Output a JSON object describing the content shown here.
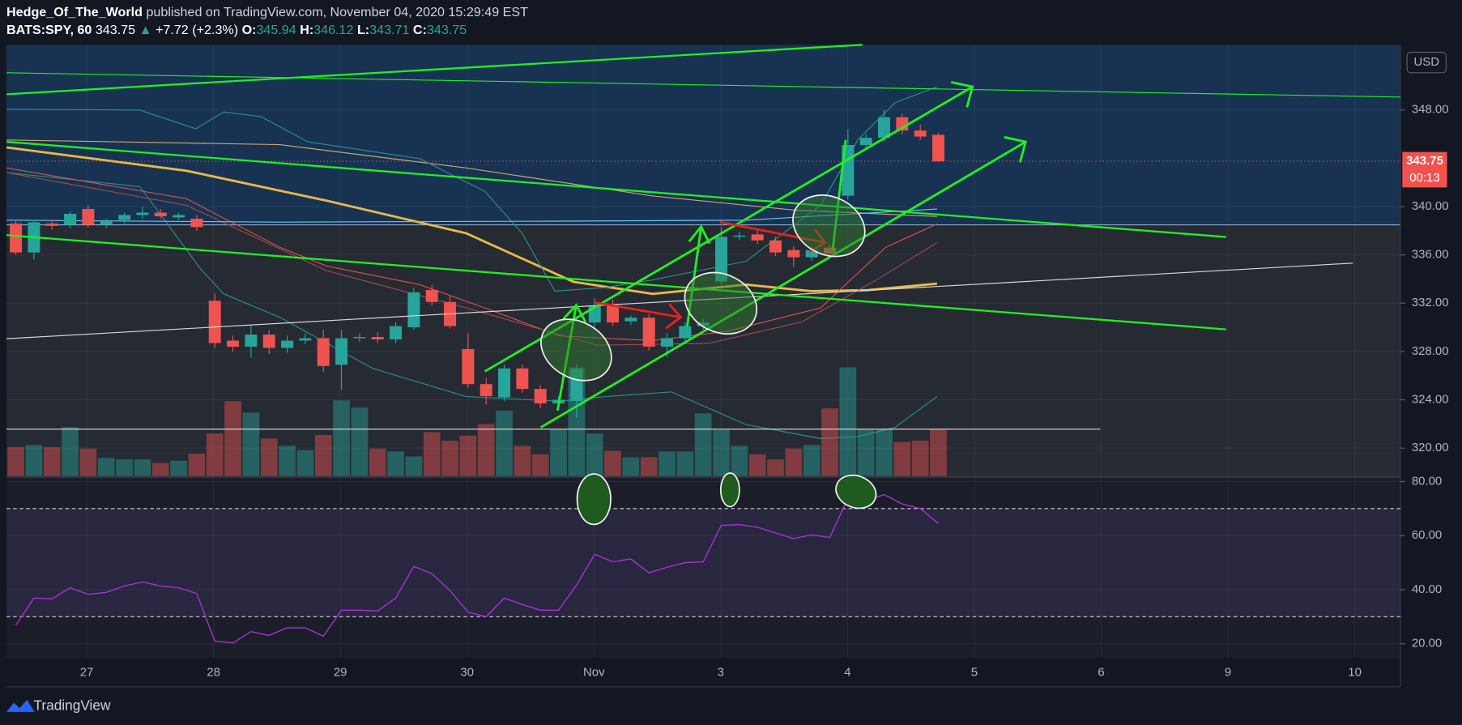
{
  "header": {
    "author": "Hedge_Of_The_World",
    "published": "published on TradingView.com, November 04, 2020 15:29:49 EST",
    "symbol": "BATS:SPY, 60",
    "change_arrow": "▲",
    "change": "+7.72 (+2.3%)",
    "o_label": "O:",
    "h_label": "H:",
    "l_label": "L:",
    "c_label": "C:",
    "brand": "TradingView"
  },
  "chart_data": {
    "type": "candlestick",
    "currency": "USD",
    "countdown": "00:13",
    "categories": [
      null,
      null,
      null,
      null,
      null,
      null,
      null,
      null,
      null,
      null,
      null,
      null,
      null,
      null,
      null,
      null,
      null,
      null,
      null,
      null,
      null,
      null,
      null,
      null,
      null,
      null,
      null,
      null,
      null,
      null,
      null,
      null,
      null,
      null,
      null,
      null,
      null,
      null,
      null,
      null,
      null,
      null,
      null,
      null,
      null,
      null,
      null,
      null,
      null,
      null,
      null,
      null
    ],
    "open": [
      338.6,
      336.2,
      338.6,
      338.5,
      339.8,
      338.5,
      338.9,
      339.3,
      339.5,
      339.1,
      339.0,
      332.2,
      328.9,
      328.4,
      329.4,
      328.3,
      328.9,
      329.1,
      326.9,
      329.1,
      329.2,
      329.0,
      330.0,
      333.1,
      332.1,
      328.2,
      325.3,
      324.2,
      326.6,
      324.9,
      323.7,
      323.9,
      330.4,
      331.8,
      330.5,
      330.8,
      328.4,
      329.1,
      330.1,
      333.8,
      337.5,
      337.7,
      337.2,
      336.4,
      335.8,
      336.6,
      340.9,
      345.1,
      345.7,
      347.4,
      346.3,
      345.94
    ],
    "high": [
      338.8,
      338.9,
      338.9,
      339.6,
      340.1,
      339.0,
      339.5,
      340.0,
      339.8,
      339.5,
      339.3,
      332.8,
      329.3,
      330.2,
      329.8,
      329.3,
      329.5,
      329.8,
      329.8,
      329.5,
      329.6,
      330.4,
      333.3,
      333.5,
      332.6,
      329.5,
      325.8,
      326.9,
      326.9,
      325.2,
      324.3,
      327.0,
      332.4,
      332.3,
      331.0,
      331.1,
      329.5,
      330.4,
      330.7,
      338.3,
      337.9,
      338.1,
      337.5,
      336.7,
      336.7,
      336.9,
      346.4,
      346.0,
      348.0,
      347.7,
      346.8,
      346.12
    ],
    "low": [
      336.0,
      335.6,
      338.1,
      338.2,
      338.3,
      338.2,
      338.6,
      339.0,
      339.0,
      338.9,
      338.0,
      328.3,
      328.0,
      327.5,
      327.8,
      327.9,
      328.6,
      326.3,
      324.8,
      328.8,
      328.7,
      328.7,
      329.8,
      331.8,
      329.9,
      325.0,
      323.6,
      323.9,
      324.6,
      323.3,
      323.4,
      322.5,
      330.0,
      330.1,
      330.2,
      328.1,
      327.5,
      328.8,
      329.8,
      333.5,
      337.2,
      336.9,
      335.9,
      335.0,
      335.5,
      335.8,
      340.6,
      344.7,
      345.4,
      346.0,
      345.5,
      343.71
    ],
    "close": [
      336.2,
      338.7,
      338.4,
      339.4,
      338.5,
      338.8,
      339.3,
      339.5,
      339.2,
      339.3,
      338.3,
      328.7,
      328.4,
      329.4,
      328.3,
      328.9,
      329.1,
      326.8,
      329.1,
      329.2,
      329.0,
      330.1,
      332.9,
      332.1,
      330.1,
      325.3,
      324.3,
      326.6,
      324.9,
      323.7,
      324.0,
      326.6,
      331.8,
      330.4,
      330.8,
      328.4,
      329.1,
      330.1,
      330.4,
      337.5,
      337.6,
      337.2,
      336.2,
      335.8,
      336.4,
      336.1,
      345.1,
      345.7,
      347.4,
      346.3,
      345.8,
      343.75
    ],
    "volume": [
      4.0,
      4.3,
      4.0,
      6.8,
      3.8,
      2.5,
      2.3,
      2.3,
      1.8,
      2.1,
      3.1,
      5.9,
      10.4,
      8.8,
      5.2,
      4.2,
      3.6,
      5.7,
      10.5,
      9.5,
      3.8,
      3.4,
      2.7,
      6.1,
      4.9,
      5.6,
      7.2,
      9.1,
      4.2,
      3.0,
      6.5,
      15.1,
      5.9,
      3.5,
      2.6,
      2.6,
      3.4,
      3.4,
      8.7,
      6.4,
      4.2,
      3.0,
      2.3,
      3.8,
      4.3,
      9.4,
      15.1,
      6.5,
      6.5,
      4.7,
      4.9,
      6.5
    ],
    "volume_ylim": [
      0,
      60
    ],
    "rsi": [
      26.9,
      36.9,
      36.6,
      40.7,
      38.3,
      39.0,
      41.4,
      42.8,
      41.4,
      40.7,
      38.6,
      21.0,
      20.3,
      24.5,
      23.1,
      25.9,
      25.9,
      22.8,
      32.4,
      32.4,
      32.1,
      36.9,
      48.6,
      45.9,
      39.7,
      31.7,
      30.0,
      36.9,
      34.5,
      32.4,
      32.4,
      41.7,
      53.1,
      50.3,
      51.4,
      46.2,
      48.3,
      50.0,
      50.3,
      63.8,
      64.1,
      63.1,
      61.0,
      58.9,
      60.3,
      59.3,
      73.8,
      72.8,
      75.2,
      71.7,
      70.0,
      64.5
    ],
    "rsi_color": "#a832d6",
    "rsi_levels": [
      70,
      30
    ],
    "rsi_ylim": [
      14.8,
      82.1
    ],
    "rsi_yticks": [
      {
        "value": 80,
        "label": "80.00"
      },
      {
        "value": 60,
        "label": "60.00"
      },
      {
        "value": 40,
        "label": "40.00"
      },
      {
        "value": 20,
        "label": "20.00"
      }
    ],
    "ylim": [
      317.7,
      353.4
    ],
    "yticks": [
      {
        "value": 348,
        "label": "348.00"
      },
      {
        "value": 340,
        "label": "340.00"
      },
      {
        "value": 336,
        "label": "336.00"
      },
      {
        "value": 332,
        "label": "332.00"
      },
      {
        "value": 328,
        "label": "328.00"
      },
      {
        "value": 324,
        "label": "324.00"
      },
      {
        "value": 320,
        "label": "320.00"
      }
    ],
    "x_labels": [
      "27",
      "28",
      "29",
      "30",
      "Nov",
      "3",
      "4",
      "5",
      "6",
      "9",
      "10"
    ],
    "up_color": "#26a69a",
    "down_color": "#ef5350",
    "grid": true
  }
}
